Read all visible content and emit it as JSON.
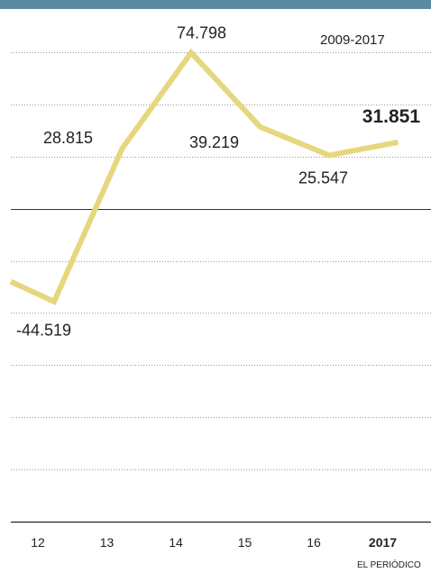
{
  "period": "2009-2017",
  "source": "EL PERIÓDICO",
  "colors": {
    "bar": "#5b8aa0",
    "line": "#e6d77f"
  },
  "chart_data": {
    "type": "line",
    "ylim": [
      -150000,
      100000
    ],
    "grid": true,
    "emphasized": "2017",
    "x": [
      "12",
      "13",
      "14",
      "15",
      "16",
      "2017"
    ],
    "series": [
      {
        "values": [
          -44519,
          28815,
          74798,
          39219,
          25547,
          31851
        ]
      }
    ],
    "data_labels": [
      "-44.519",
      "28.815",
      "74.798",
      "39.219",
      "25.547",
      "31.851"
    ]
  }
}
